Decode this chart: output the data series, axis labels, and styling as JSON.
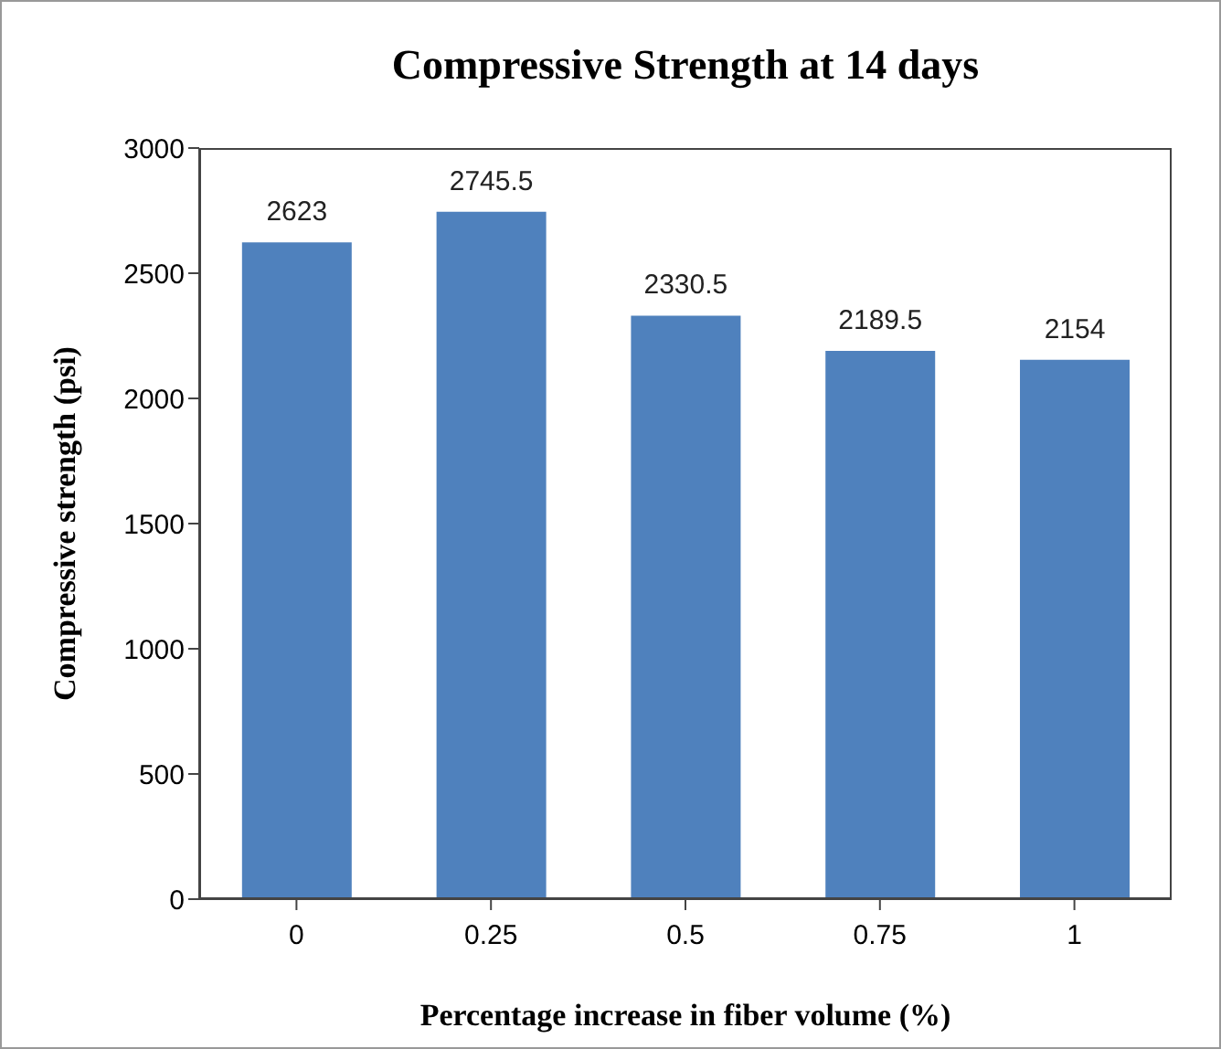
{
  "chart_data": {
    "type": "bar",
    "title": "Compressive  Strength at 14 days",
    "xlabel": "Percentage increase in fiber volume (%)",
    "ylabel": "Compressive strength (psi)",
    "categories": [
      "0",
      "0.25",
      "0.5",
      "0.75",
      "1"
    ],
    "values": [
      2623,
      2745.5,
      2330.5,
      2189.5,
      2154
    ],
    "color": "#4f81bd",
    "ylim": [
      0,
      3000
    ],
    "yticks": [
      0,
      500,
      1000,
      1500,
      2000,
      2500,
      3000
    ],
    "grid": false,
    "data_labels": true
  }
}
